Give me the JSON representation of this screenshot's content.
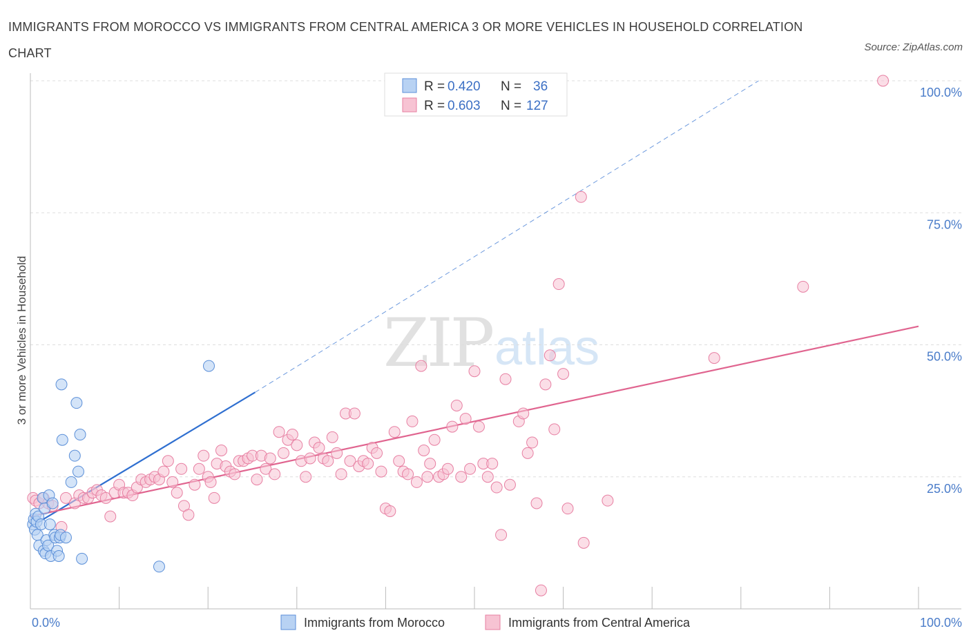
{
  "title": "IMMIGRANTS FROM MOROCCO VS IMMIGRANTS FROM CENTRAL AMERICA 3 OR MORE VEHICLES IN HOUSEHOLD CORRELATION CHART",
  "source": "Source: ZipAtlas.com",
  "colors": {
    "morocco_fill": "#b8d2f3",
    "morocco_stroke": "#5b8fd8",
    "morocco_line": "#2f6fd0",
    "ca_fill": "#f7c3d3",
    "ca_stroke": "#e77fa2",
    "ca_line": "#e0648f",
    "tick_label": "#4a7cc9",
    "grid": "#dddddd"
  },
  "legend": {
    "morocco": {
      "r_label": "R =",
      "r_value": "0.420",
      "n_label": "N =",
      "n_value": "36"
    },
    "central_america": {
      "r_label": "R =",
      "r_value": "0.603",
      "n_label": "N =",
      "n_value": "127"
    }
  },
  "chart_data": {
    "type": "scatter",
    "title": "IMMIGRANTS FROM MOROCCO VS IMMIGRANTS FROM CENTRAL AMERICA 3 OR MORE VEHICLES IN HOUSEHOLD CORRELATION CHART",
    "xlabel": "",
    "ylabel": "3 or more Vehicles in Household",
    "xlim": [
      0,
      100
    ],
    "ylim": [
      0,
      100
    ],
    "x_tick_labels": [
      "0.0%",
      "100.0%"
    ],
    "y_tick_labels": [
      "25.0%",
      "50.0%",
      "75.0%",
      "100.0%"
    ],
    "y_ticks": [
      25,
      50,
      75,
      100
    ],
    "grid": true,
    "legend_position": "top-center",
    "series": [
      {
        "name": "Immigrants from Morocco",
        "R": 0.42,
        "N": 36,
        "trend": {
          "x0": 0,
          "y0": 15.5,
          "x1": 25.3,
          "y1": 41,
          "dashed_to_x": 82,
          "dashed_to_y": 100
        },
        "points": [
          [
            0.3,
            16.0
          ],
          [
            0.4,
            17.0
          ],
          [
            0.5,
            15.0
          ],
          [
            0.6,
            18.0
          ],
          [
            0.7,
            16.5
          ],
          [
            0.8,
            14.0
          ],
          [
            0.9,
            17.5
          ],
          [
            1.0,
            12.0
          ],
          [
            1.2,
            16.0
          ],
          [
            1.4,
            21.0
          ],
          [
            1.5,
            11.0
          ],
          [
            1.6,
            19.0
          ],
          [
            1.7,
            10.5
          ],
          [
            1.8,
            13.0
          ],
          [
            2.0,
            12.0
          ],
          [
            2.1,
            21.5
          ],
          [
            2.2,
            16.0
          ],
          [
            2.3,
            10.0
          ],
          [
            2.5,
            20.0
          ],
          [
            2.7,
            14.0
          ],
          [
            2.8,
            13.5
          ],
          [
            3.0,
            11.0
          ],
          [
            3.2,
            10.0
          ],
          [
            3.3,
            13.5
          ],
          [
            3.4,
            14.0
          ],
          [
            3.5,
            42.5
          ],
          [
            3.6,
            32.0
          ],
          [
            4.0,
            13.5
          ],
          [
            4.6,
            24.0
          ],
          [
            5.0,
            29.0
          ],
          [
            5.2,
            39.0
          ],
          [
            5.4,
            26.0
          ],
          [
            5.6,
            33.0
          ],
          [
            5.8,
            9.5
          ],
          [
            14.5,
            8.0
          ],
          [
            20.1,
            46.0
          ]
        ]
      },
      {
        "name": "Immigrants from Central America",
        "R": 0.603,
        "N": 127,
        "trend": {
          "x0": 0,
          "y0": 17.5,
          "x1": 100,
          "y1": 53.5
        },
        "points": [
          [
            0.3,
            21.0
          ],
          [
            0.6,
            20.5
          ],
          [
            1.0,
            20.0
          ],
          [
            1.5,
            21.0
          ],
          [
            2.0,
            20.0
          ],
          [
            2.5,
            19.5
          ],
          [
            3.5,
            15.5
          ],
          [
            4.0,
            21.0
          ],
          [
            5.0,
            20.0
          ],
          [
            5.5,
            21.5
          ],
          [
            6.0,
            21.0
          ],
          [
            6.5,
            21.0
          ],
          [
            7.0,
            22.0
          ],
          [
            7.5,
            22.5
          ],
          [
            8.0,
            21.5
          ],
          [
            8.5,
            21.0
          ],
          [
            9.0,
            17.5
          ],
          [
            9.5,
            22.0
          ],
          [
            10.0,
            23.5
          ],
          [
            10.5,
            22.0
          ],
          [
            11.0,
            22.0
          ],
          [
            11.5,
            21.5
          ],
          [
            12.0,
            23.0
          ],
          [
            12.5,
            24.5
          ],
          [
            13.0,
            24.0
          ],
          [
            13.5,
            24.5
          ],
          [
            14.0,
            25.0
          ],
          [
            14.5,
            24.5
          ],
          [
            15.0,
            26.0
          ],
          [
            15.5,
            28.0
          ],
          [
            16.0,
            24.0
          ],
          [
            16.5,
            22.0
          ],
          [
            17.0,
            26.5
          ],
          [
            17.3,
            19.5
          ],
          [
            17.8,
            17.8
          ],
          [
            18.5,
            23.5
          ],
          [
            19.0,
            26.5
          ],
          [
            19.5,
            29.0
          ],
          [
            20.0,
            25.0
          ],
          [
            20.3,
            24.0
          ],
          [
            20.7,
            21.0
          ],
          [
            21.0,
            27.5
          ],
          [
            21.5,
            30.0
          ],
          [
            22.0,
            27.0
          ],
          [
            22.5,
            26.0
          ],
          [
            23.0,
            25.5
          ],
          [
            23.5,
            28.0
          ],
          [
            24.0,
            28.0
          ],
          [
            24.5,
            28.5
          ],
          [
            25.0,
            29.0
          ],
          [
            25.5,
            24.5
          ],
          [
            26.0,
            29.0
          ],
          [
            26.5,
            26.5
          ],
          [
            27.0,
            28.5
          ],
          [
            27.5,
            25.5
          ],
          [
            28.0,
            33.5
          ],
          [
            28.5,
            29.5
          ],
          [
            29.0,
            32.0
          ],
          [
            29.5,
            33.0
          ],
          [
            30.0,
            31.0
          ],
          [
            30.5,
            28.0
          ],
          [
            31.0,
            25.0
          ],
          [
            31.5,
            28.5
          ],
          [
            32.0,
            31.5
          ],
          [
            32.5,
            30.5
          ],
          [
            33.0,
            28.5
          ],
          [
            33.5,
            28.0
          ],
          [
            34.0,
            32.5
          ],
          [
            34.5,
            29.5
          ],
          [
            35.0,
            25.5
          ],
          [
            35.5,
            37.0
          ],
          [
            36.0,
            28.0
          ],
          [
            36.5,
            37.0
          ],
          [
            37.0,
            27.0
          ],
          [
            37.5,
            28.0
          ],
          [
            38.0,
            27.5
          ],
          [
            38.5,
            30.5
          ],
          [
            39.0,
            29.5
          ],
          [
            39.5,
            26.0
          ],
          [
            40.0,
            19.0
          ],
          [
            40.5,
            18.5
          ],
          [
            41.0,
            33.5
          ],
          [
            41.5,
            28.0
          ],
          [
            42.0,
            26.0
          ],
          [
            42.5,
            25.5
          ],
          [
            43.0,
            35.5
          ],
          [
            43.5,
            24.0
          ],
          [
            44.0,
            46.0
          ],
          [
            44.3,
            30.0
          ],
          [
            44.7,
            25.0
          ],
          [
            45.0,
            27.5
          ],
          [
            45.5,
            32.0
          ],
          [
            46.0,
            25.0
          ],
          [
            46.5,
            25.5
          ],
          [
            47.0,
            26.5
          ],
          [
            47.5,
            34.5
          ],
          [
            48.0,
            38.5
          ],
          [
            48.5,
            25.0
          ],
          [
            49.0,
            36.0
          ],
          [
            49.5,
            26.5
          ],
          [
            50.0,
            45.0
          ],
          [
            50.5,
            34.5
          ],
          [
            51.0,
            27.5
          ],
          [
            51.5,
            25.0
          ],
          [
            52.0,
            27.5
          ],
          [
            52.5,
            23.0
          ],
          [
            53.0,
            14.0
          ],
          [
            53.5,
            43.5
          ],
          [
            54.0,
            23.5
          ],
          [
            55.0,
            35.5
          ],
          [
            55.5,
            37.0
          ],
          [
            56.0,
            29.5
          ],
          [
            56.5,
            31.5
          ],
          [
            57.0,
            20.0
          ],
          [
            57.5,
            3.5
          ],
          [
            58.0,
            42.5
          ],
          [
            58.5,
            48.0
          ],
          [
            59.0,
            34.0
          ],
          [
            59.5,
            61.5
          ],
          [
            60.0,
            44.5
          ],
          [
            60.5,
            19.0
          ],
          [
            62.0,
            78.0
          ],
          [
            62.3,
            12.5
          ],
          [
            65.0,
            20.5
          ],
          [
            77.0,
            47.5
          ],
          [
            87.0,
            61.0
          ],
          [
            96.0,
            100.0
          ]
        ]
      }
    ]
  },
  "bottom_legend": {
    "morocco_label": "Immigrants from Morocco",
    "ca_label": "Immigrants from Central America"
  },
  "watermark": {
    "zip": "ZIP",
    "atlas": "atlas"
  }
}
